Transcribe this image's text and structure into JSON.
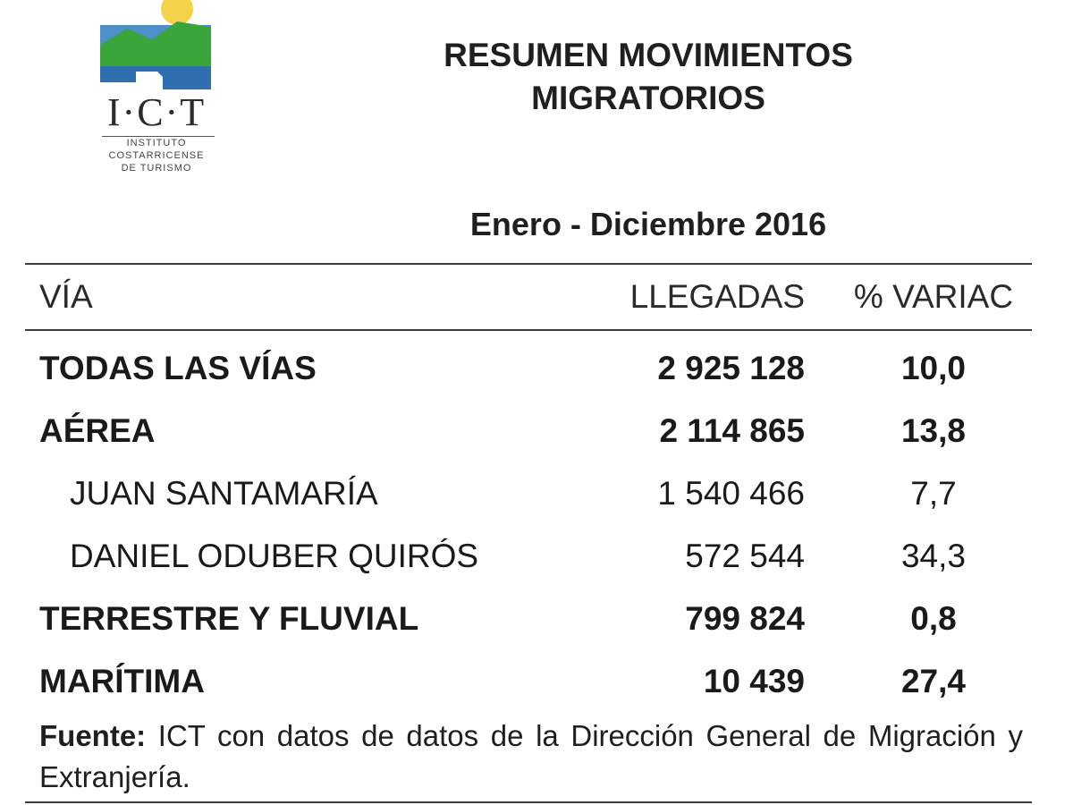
{
  "logo": {
    "acronym": "I·C·T",
    "subtitle_lines": [
      "INSTITUTO",
      "COSTARRICENSE",
      "DE TURISMO"
    ],
    "colors": {
      "sun": "#f2d34a",
      "mountain": "#3aa53a",
      "sky": "#4f8fc9",
      "water": "#2f6fb0"
    }
  },
  "title_lines": [
    "RESUMEN MOVIMIENTOS",
    "MIGRATORIOS"
  ],
  "period": "Enero - Diciembre 2016",
  "table": {
    "headers": {
      "via": "VÍA",
      "llegadas": "LLEGADAS",
      "variacion": "% VARIAC"
    },
    "rows": [
      {
        "via": "TODAS LAS VÍAS",
        "llegadas": "2 925 128",
        "variacion": "10,0"
      },
      {
        "via": "AÉREA",
        "llegadas": "2 114 865",
        "variacion": "13,8"
      },
      {
        "via": "JUAN SANTAMARÍA",
        "llegadas": "1 540 466",
        "variacion": "7,7"
      },
      {
        "via": "DANIEL ODUBER QUIRÓS",
        "llegadas": "572 544",
        "variacion": "34,3"
      },
      {
        "via": "TERRESTRE Y FLUVIAL",
        "llegadas": "799 824",
        "variacion": "0,8"
      },
      {
        "via": "MARÍTIMA",
        "llegadas": "10 439",
        "variacion": "27,4"
      }
    ]
  },
  "source": {
    "label": "Fuente:",
    "text": " ICT con datos de datos de la Dirección General de Migración y Extranjería."
  }
}
